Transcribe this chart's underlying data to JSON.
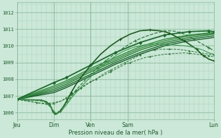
{
  "xlabel": "Pression niveau de la mer( hPa )",
  "bg_color": "#cce8d8",
  "grid_color_major": "#88bb99",
  "grid_color_minor": "#aaccbb",
  "ylim": [
    1005.6,
    1012.6
  ],
  "yticks": [
    1006,
    1007,
    1008,
    1009,
    1010,
    1011,
    1012
  ],
  "xlim": [
    0.0,
    4.0
  ],
  "day_positions": [
    0.0,
    0.75,
    1.5,
    2.25,
    4.0
  ],
  "day_labels": [
    "Jeu",
    "Dim",
    "Ven",
    "Sam",
    "Lun"
  ],
  "lines": [
    {
      "x": [
        0.0,
        0.1,
        0.2,
        0.3,
        0.4,
        0.5,
        0.6,
        0.7,
        0.75,
        0.8,
        0.9,
        1.0,
        1.1,
        1.2,
        1.3,
        1.4,
        1.5,
        1.6,
        1.7,
        1.8,
        1.9,
        2.0,
        2.1,
        2.2,
        2.3,
        2.4,
        2.5,
        2.6,
        2.7,
        2.8,
        2.9,
        3.0,
        3.1,
        3.2,
        3.3,
        3.4,
        3.5,
        3.6,
        3.7,
        3.8,
        3.9,
        4.0
      ],
      "y": [
        1006.8,
        1006.75,
        1006.7,
        1006.65,
        1006.6,
        1006.55,
        1006.5,
        1006.5,
        1006.55,
        1006.6,
        1006.7,
        1006.9,
        1007.1,
        1007.3,
        1007.5,
        1007.7,
        1007.85,
        1008.0,
        1008.15,
        1008.3,
        1008.45,
        1008.6,
        1008.75,
        1008.9,
        1009.0,
        1009.1,
        1009.2,
        1009.3,
        1009.35,
        1009.4,
        1009.45,
        1009.5,
        1009.52,
        1009.54,
        1009.56,
        1009.58,
        1009.55,
        1009.52,
        1009.48,
        1009.44,
        1009.4,
        1009.35
      ],
      "style": "--",
      "color": "#2d7a3a",
      "lw": 0.7,
      "marker": ".",
      "ms": 2
    },
    {
      "x": [
        0.0,
        0.2,
        0.4,
        0.6,
        0.75,
        0.9,
        1.0,
        1.1,
        1.2,
        1.3,
        1.4,
        1.5,
        1.6,
        1.7,
        1.8,
        1.9,
        2.0,
        2.1,
        2.2,
        2.3,
        2.4,
        2.5,
        2.6,
        2.7,
        2.8,
        2.9,
        3.0,
        3.1,
        3.2,
        3.3,
        3.5,
        3.7,
        3.9,
        4.0
      ],
      "y": [
        1006.8,
        1006.7,
        1006.6,
        1006.55,
        1006.6,
        1006.7,
        1006.85,
        1007.05,
        1007.25,
        1007.45,
        1007.65,
        1007.85,
        1008.0,
        1008.2,
        1008.4,
        1008.55,
        1008.7,
        1008.85,
        1009.0,
        1009.15,
        1009.3,
        1009.45,
        1009.6,
        1009.7,
        1009.75,
        1009.8,
        1009.8,
        1009.8,
        1009.8,
        1009.78,
        1009.7,
        1009.6,
        1009.5,
        1009.45
      ],
      "style": "--",
      "color": "#2d7a3a",
      "lw": 0.7,
      "marker": ".",
      "ms": 2
    },
    {
      "x": [
        0.0,
        0.75,
        1.0,
        1.5,
        2.0,
        2.5,
        3.0,
        3.5,
        4.0
      ],
      "y": [
        1006.8,
        1007.2,
        1007.5,
        1008.2,
        1008.9,
        1009.5,
        1010.0,
        1010.3,
        1010.5
      ],
      "style": "-",
      "color": "#1a5c2a",
      "lw": 1.0,
      "marker": null,
      "ms": 0
    },
    {
      "x": [
        0.0,
        0.75,
        1.0,
        1.5,
        2.0,
        2.5,
        3.0,
        3.5,
        4.0
      ],
      "y": [
        1006.8,
        1007.3,
        1007.6,
        1008.3,
        1009.0,
        1009.6,
        1010.1,
        1010.4,
        1010.6
      ],
      "style": "-",
      "color": "#1a6b2a",
      "lw": 1.0,
      "marker": null,
      "ms": 0
    },
    {
      "x": [
        0.0,
        0.75,
        1.0,
        1.5,
        2.0,
        2.5,
        3.0,
        3.5,
        4.0
      ],
      "y": [
        1006.8,
        1007.4,
        1007.7,
        1008.45,
        1009.1,
        1009.75,
        1010.2,
        1010.5,
        1010.7
      ],
      "style": "-",
      "color": "#2a7a3a",
      "lw": 1.0,
      "marker": null,
      "ms": 0
    },
    {
      "x": [
        0.0,
        0.75,
        1.0,
        1.5,
        2.0,
        2.5,
        3.0,
        3.5,
        4.0
      ],
      "y": [
        1006.8,
        1007.5,
        1007.8,
        1008.55,
        1009.2,
        1009.85,
        1010.3,
        1010.6,
        1010.75
      ],
      "style": "-",
      "color": "#3a8a3a",
      "lw": 1.0,
      "marker": null,
      "ms": 0
    },
    {
      "x": [
        0.0,
        0.75,
        1.0,
        1.5,
        2.0,
        2.5,
        3.0,
        3.5,
        4.0
      ],
      "y": [
        1006.8,
        1007.6,
        1007.9,
        1008.65,
        1009.3,
        1009.95,
        1010.4,
        1010.65,
        1010.8
      ],
      "style": "-",
      "color": "#2a8a3a",
      "lw": 1.0,
      "marker": null,
      "ms": 0
    },
    {
      "x": [
        0.0,
        0.5,
        0.6,
        0.65,
        0.7,
        0.72,
        0.75,
        0.78,
        0.82,
        0.88,
        0.95,
        1.05,
        1.1,
        1.2,
        1.3,
        1.5,
        1.7,
        1.9,
        2.1,
        2.3,
        2.5,
        2.7,
        2.9,
        3.0,
        3.1,
        3.2,
        3.3,
        3.4,
        3.5,
        3.6,
        3.65,
        3.7,
        3.75,
        3.8,
        3.85,
        3.9,
        4.0
      ],
      "y": [
        1006.8,
        1006.75,
        1006.65,
        1006.5,
        1006.3,
        1006.1,
        1006.0,
        1005.9,
        1005.95,
        1006.1,
        1006.4,
        1006.9,
        1007.2,
        1007.7,
        1008.1,
        1008.85,
        1009.5,
        1010.0,
        1010.4,
        1010.7,
        1010.9,
        1010.95,
        1010.9,
        1010.85,
        1010.75,
        1010.6,
        1010.45,
        1010.3,
        1010.1,
        1009.9,
        1009.8,
        1009.65,
        1009.5,
        1009.4,
        1009.3,
        1009.2,
        1009.1
      ],
      "style": "-",
      "color": "#1a5c1a",
      "lw": 1.2,
      "marker": "+",
      "ms": 3
    },
    {
      "x": [
        0.0,
        0.5,
        0.6,
        0.65,
        0.7,
        0.72,
        0.75,
        0.78,
        0.82,
        0.9,
        1.0,
        1.1,
        1.2,
        1.4,
        1.6,
        1.8,
        2.0,
        2.2,
        2.4,
        2.6,
        2.8,
        3.0,
        3.1,
        3.2,
        3.3,
        3.4,
        3.5,
        3.6,
        3.7,
        3.8,
        3.9,
        4.0
      ],
      "y": [
        1006.8,
        1006.7,
        1006.6,
        1006.45,
        1006.25,
        1006.1,
        1006.0,
        1005.95,
        1006.0,
        1006.2,
        1006.55,
        1006.95,
        1007.35,
        1008.0,
        1008.6,
        1009.1,
        1009.55,
        1009.95,
        1010.3,
        1010.55,
        1010.75,
        1010.88,
        1010.9,
        1010.88,
        1010.8,
        1010.7,
        1010.55,
        1010.4,
        1010.22,
        1010.05,
        1009.88,
        1009.72
      ],
      "style": "--",
      "color": "#2a7a3a",
      "lw": 0.9,
      "marker": "+",
      "ms": 3
    },
    {
      "x": [
        0.0,
        0.5,
        0.6,
        0.65,
        0.7,
        0.75,
        0.78,
        0.82,
        0.9,
        1.0,
        1.1,
        1.2,
        1.4,
        1.6,
        1.8,
        2.0,
        2.1,
        2.2,
        2.3,
        2.4,
        2.5,
        2.6,
        2.7,
        2.8,
        2.9,
        3.0,
        3.2,
        3.4,
        3.5,
        3.6,
        3.65,
        3.7,
        3.75,
        3.8,
        3.85,
        3.9,
        4.0
      ],
      "y": [
        1006.8,
        1006.75,
        1006.6,
        1006.45,
        1006.25,
        1006.1,
        1006.0,
        1005.95,
        1006.1,
        1006.45,
        1006.85,
        1007.2,
        1007.85,
        1008.45,
        1008.95,
        1009.4,
        1009.58,
        1009.72,
        1009.84,
        1009.94,
        1010.0,
        1010.06,
        1010.1,
        1010.12,
        1010.1,
        1010.1,
        1010.05,
        1010.0,
        1009.96,
        1009.9,
        1009.86,
        1009.82,
        1009.78,
        1009.72,
        1009.65,
        1009.58,
        1009.5
      ],
      "style": "-",
      "color": "#3a9a4a",
      "lw": 0.8,
      "marker": null,
      "ms": 0
    },
    {
      "x": [
        0.0,
        0.75,
        1.0,
        1.5,
        2.0,
        2.5,
        3.0,
        3.5,
        3.9,
        4.0
      ],
      "y": [
        1006.8,
        1007.8,
        1008.1,
        1008.85,
        1009.6,
        1010.2,
        1010.65,
        1010.85,
        1010.9,
        1010.85
      ],
      "style": "-",
      "color": "#1a6b2a",
      "lw": 1.3,
      "marker": "D",
      "ms": 2
    }
  ]
}
